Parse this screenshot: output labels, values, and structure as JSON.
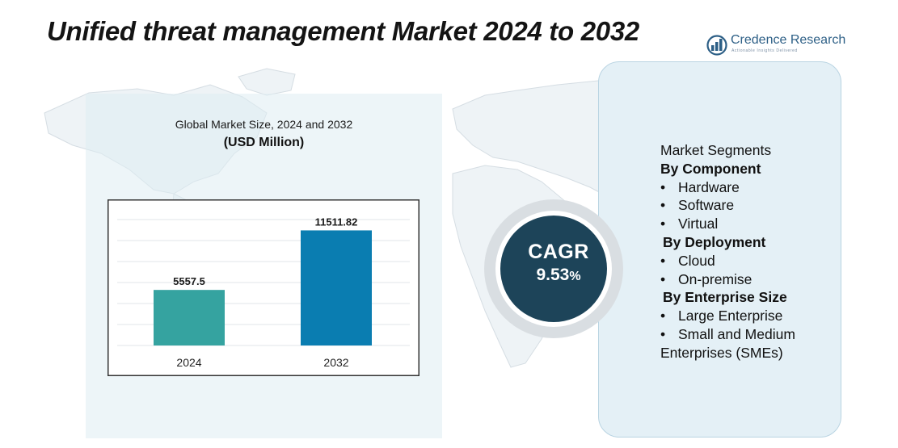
{
  "header": {
    "title": "Unified threat management Market 2024 to 2032",
    "logo_name": "Credence Research",
    "logo_tagline": "Actionable Insights Delivered"
  },
  "chart_panel": {
    "subtitle": "Global Market Size, 2024 and 2032",
    "unit": "(USD Million)"
  },
  "chart_data": {
    "type": "bar",
    "title": "Global Market Size, 2024 and 2032",
    "ylabel": "USD Million",
    "xlabel": "",
    "categories": [
      "2024",
      "2032"
    ],
    "values": [
      5557.5,
      11511.82
    ],
    "value_labels": [
      "5557.5",
      "11511.82"
    ],
    "colors": [
      "#35a3a0",
      "#0a7db1"
    ],
    "ylim": [
      0,
      13000
    ],
    "grid": true
  },
  "cagr": {
    "label": "CAGR",
    "value": "9.53",
    "unit": "%"
  },
  "segments": {
    "heading": "Market Segments",
    "groups": [
      {
        "title": "By Component",
        "items": [
          "Hardware",
          "Software",
          "Virtual"
        ]
      },
      {
        "title": "By Deployment",
        "items": [
          "Cloud",
          "On-premise"
        ]
      },
      {
        "title": "By Enterprise Size",
        "items": [
          "Large Enterprise",
          "Small and Medium"
        ]
      }
    ],
    "continuation": "Enterprises (SMEs)"
  },
  "colors": {
    "panel_left": "#deecf3",
    "panel_right": "#e4f0f6",
    "cagr_circle": "#1d4459",
    "cagr_ring": "#d9dee2",
    "brand": "#2d5f86"
  }
}
